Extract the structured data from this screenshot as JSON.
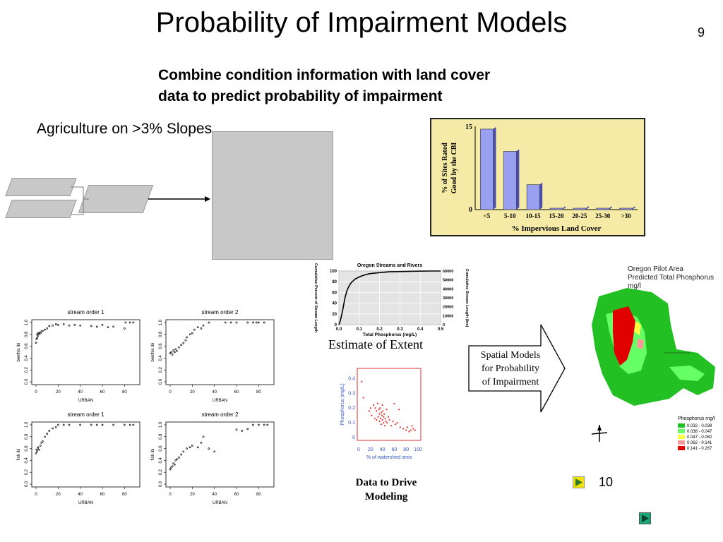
{
  "slide": {
    "title": "Probability of Impairment Models",
    "page_number": "9",
    "subtitle_line1": "Combine condition information with land cover",
    "subtitle_line2": "data to predict probability of impairment",
    "agri_label": "Agriculture on >3% Slopes",
    "estimate_caption": "Estimate of Extent",
    "spatial_text": [
      "Spatial Models",
      "for Probability",
      "of Impairment"
    ],
    "data_drive": [
      "Data to Drive",
      "Modeling"
    ],
    "nav_number": "10"
  },
  "colors": {
    "bar_fill": "#9aa0f0",
    "bar_panel_bg": "#f5eaa6",
    "scatter_red": "#e03030",
    "nav_yellow": "#f2e400",
    "nav_green": "#1aa878"
  },
  "oregon_map": {
    "title_lines": [
      "Oregon Pilot Area",
      "Predicted Total Phosphorus",
      "mg/l"
    ],
    "legend_title": "Phosphorus mg/l",
    "legend": [
      {
        "label": "0.032 - 0.038",
        "color": "#22c022"
      },
      {
        "label": "0.038 - 0.047",
        "color": "#66ff66"
      },
      {
        "label": "0.047 - 0.062",
        "color": "#ffff44"
      },
      {
        "label": "0.062 - 0.141",
        "color": "#ff9999"
      },
      {
        "label": "0.141 - 0.267",
        "color": "#e00000"
      }
    ]
  },
  "chart_data": [
    {
      "type": "bar",
      "title": "",
      "xlabel": "% Impervious Land Cover",
      "ylabel": "% of Sites Rated Good by the CBI",
      "categories": [
        "<5",
        "5-10",
        "10-15",
        "15-20",
        "20-25",
        "25-30",
        ">30"
      ],
      "values": [
        14.5,
        10.5,
        4.5,
        0,
        0,
        0,
        0
      ],
      "ylim": [
        0,
        15
      ],
      "yticks": [
        "0",
        "15"
      ]
    },
    {
      "type": "line",
      "title": "Oregon Streams and Rivers",
      "xlabel": "Total Phosphorus (mg/L)",
      "ylabel": "Cumulative Percent of Stream Length",
      "ylabel2": "Cumulative Stream Length (km)",
      "xlim": [
        0,
        0.5
      ],
      "ylim": [
        0,
        100
      ],
      "xticks": [
        "0.0",
        "0.1",
        "0.2",
        "0.3",
        "0.4",
        "0.5"
      ],
      "yticks": [
        "0",
        "20",
        "40",
        "60",
        "80",
        "100"
      ],
      "y2ticks": [
        "0",
        "10000",
        "20000",
        "30000",
        "40000",
        "50000",
        "60000"
      ],
      "x": [
        0,
        0.005,
        0.01,
        0.02,
        0.03,
        0.04,
        0.05,
        0.06,
        0.08,
        0.1,
        0.12,
        0.15,
        0.2,
        0.25,
        0.3,
        0.35,
        0.4,
        0.45,
        0.5
      ],
      "y": [
        0,
        5,
        12,
        30,
        50,
        64,
        72,
        78,
        85,
        89,
        92,
        95,
        97,
        98.5,
        99,
        99.5,
        99.8,
        100,
        100
      ]
    },
    {
      "type": "scatter",
      "title": "",
      "xlabel": "% of watershed area",
      "ylabel": "Phosphorus (mg/L)",
      "xlim": [
        0,
        100
      ],
      "ylim": [
        0,
        0.45
      ],
      "xticks": [
        "0",
        "20",
        "40",
        "60",
        "80",
        "100"
      ],
      "yticks": [
        "0",
        "0.1",
        "0.2",
        "0.3",
        "0.4"
      ],
      "x": [
        5,
        8,
        18,
        20,
        22,
        25,
        27,
        28,
        30,
        30,
        32,
        33,
        34,
        35,
        35,
        36,
        37,
        38,
        38,
        39,
        40,
        40,
        41,
        42,
        42,
        43,
        44,
        45,
        46,
        47,
        48,
        50,
        52,
        55,
        58,
        60,
        62,
        65,
        68,
        70,
        75,
        80,
        82,
        85,
        88,
        90,
        92,
        95
      ],
      "y": [
        0.38,
        0.27,
        0.18,
        0.2,
        0.15,
        0.22,
        0.13,
        0.2,
        0.18,
        0.12,
        0.23,
        0.14,
        0.19,
        0.16,
        0.11,
        0.2,
        0.13,
        0.17,
        0.09,
        0.15,
        0.22,
        0.12,
        0.18,
        0.1,
        0.14,
        0.16,
        0.08,
        0.13,
        0.11,
        0.19,
        0.1,
        0.14,
        0.12,
        0.08,
        0.11,
        0.23,
        0.09,
        0.1,
        0.19,
        0.07,
        0.06,
        0.05,
        0.07,
        0.04,
        0.05,
        0.08,
        0.06,
        0.05
      ]
    },
    {
      "type": "scatter",
      "title": "stream order 1",
      "xlabel": "URBAN",
      "ylabel": "benthic ibi",
      "xlim": [
        0,
        90
      ],
      "ylim": [
        0,
        1
      ],
      "xticks": [
        "0",
        "20",
        "40",
        "60",
        "80"
      ],
      "yticks": [
        "0.0",
        "0.2",
        "0.4",
        "0.6",
        "0.8",
        "1.0"
      ],
      "x": [
        0,
        0.5,
        1,
        1,
        1.5,
        2,
        2.5,
        3,
        4,
        5,
        6,
        8,
        10,
        12,
        15,
        18,
        20,
        25,
        30,
        35,
        40,
        50,
        55,
        60,
        65,
        70,
        80,
        81,
        85,
        88
      ],
      "y": [
        0.66,
        0.72,
        0.8,
        0.74,
        0.77,
        0.82,
        0.8,
        0.83,
        0.82,
        0.85,
        0.86,
        0.88,
        0.9,
        0.94,
        0.95,
        0.97,
        0.96,
        0.97,
        0.95,
        0.96,
        0.95,
        0.94,
        0.93,
        0.96,
        0.92,
        0.93,
        0.9,
        1.0,
        1.0,
        1.0
      ]
    },
    {
      "type": "scatter",
      "title": "stream order 2",
      "xlabel": "URBAN",
      "ylabel": "benthic ibi",
      "xlim": [
        0,
        90
      ],
      "ylim": [
        0,
        1
      ],
      "xticks": [
        "0",
        "20",
        "40",
        "60",
        "80"
      ],
      "yticks": [
        "0.0",
        "0.2",
        "0.4",
        "0.6",
        "0.8",
        "1.0"
      ],
      "x": [
        0,
        1,
        2,
        3,
        4,
        5,
        6,
        8,
        10,
        12,
        14,
        15,
        18,
        20,
        22,
        25,
        28,
        30,
        35,
        50,
        55,
        60,
        70,
        75,
        78,
        80,
        85
      ],
      "y": [
        0.48,
        0.5,
        0.46,
        0.53,
        0.5,
        0.55,
        0.52,
        0.58,
        0.62,
        0.65,
        0.7,
        0.75,
        0.8,
        0.82,
        0.88,
        0.92,
        0.9,
        0.95,
        1.0,
        1.0,
        1.0,
        1.0,
        1.0,
        1.0,
        1.0,
        1.0,
        1.0
      ]
    },
    {
      "type": "scatter",
      "title": "stream order 1",
      "xlabel": "URBAN",
      "ylabel": "fish ibi",
      "xlim": [
        0,
        90
      ],
      "ylim": [
        0,
        1
      ],
      "xticks": [
        "0",
        "20",
        "40",
        "60",
        "80"
      ],
      "yticks": [
        "0.0",
        "0.2",
        "0.4",
        "0.6",
        "0.8",
        "1.0"
      ],
      "x": [
        0,
        0.5,
        1,
        1.5,
        2,
        3,
        4,
        5,
        6,
        8,
        10,
        12,
        15,
        18,
        20,
        25,
        30,
        40,
        50,
        55,
        60,
        70,
        80,
        85,
        88
      ],
      "y": [
        0.52,
        0.58,
        0.55,
        0.6,
        0.62,
        0.58,
        0.65,
        0.7,
        0.72,
        0.8,
        0.85,
        0.9,
        0.94,
        0.96,
        1.0,
        1.0,
        1.0,
        1.0,
        1.0,
        1.0,
        1.0,
        1.0,
        1.0,
        1.0,
        1.0
      ]
    },
    {
      "type": "scatter",
      "title": "stream order 2",
      "xlabel": "URBAN",
      "ylabel": "fish ibi",
      "xlim": [
        0,
        90
      ],
      "ylim": [
        0,
        1
      ],
      "xticks": [
        "0",
        "20",
        "40",
        "60",
        "80"
      ],
      "yticks": [
        "0.0",
        "0.2",
        "0.4",
        "0.6",
        "0.8",
        "1.0"
      ],
      "x": [
        0,
        1,
        2,
        3,
        4,
        5,
        6,
        8,
        10,
        12,
        15,
        18,
        20,
        25,
        28,
        30,
        35,
        40,
        60,
        65,
        70,
        75,
        80,
        85,
        88
      ],
      "y": [
        0.25,
        0.28,
        0.3,
        0.35,
        0.33,
        0.4,
        0.42,
        0.45,
        0.5,
        0.55,
        0.6,
        0.62,
        0.65,
        0.62,
        0.7,
        0.8,
        0.6,
        0.55,
        0.92,
        0.9,
        0.93,
        1.0,
        1.0,
        1.0,
        1.0
      ]
    }
  ]
}
